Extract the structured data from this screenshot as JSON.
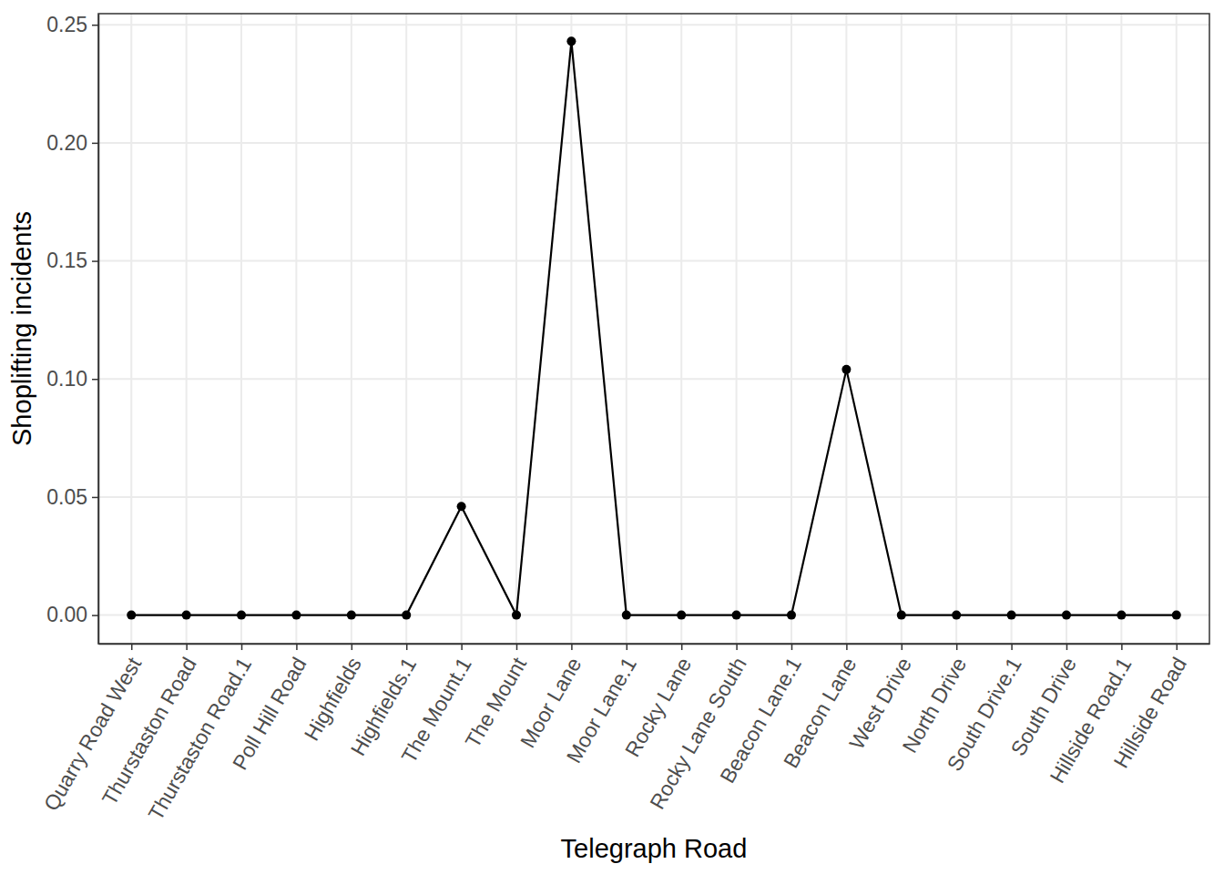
{
  "chart_data": {
    "type": "line",
    "x_label": "Telegraph Road",
    "y_label": "Shoplifting incidents",
    "categories": [
      "Quarry Road West",
      "Thurstaston Road",
      "Thurstaston Road.1",
      "Poll Hill Road",
      "Highfields",
      "Highfields.1",
      "The Mount.1",
      "The Mount",
      "Moor Lane",
      "Moor Lane.1",
      "Rocky Lane",
      "Rocky Lane South",
      "Beacon Lane.1",
      "Beacon Lane",
      "West Drive",
      "North Drive",
      "South Drive.1",
      "South Drive",
      "Hillside Road.1",
      "Hillside Road"
    ],
    "values": [
      0,
      0,
      0,
      0,
      0,
      0,
      0.046,
      0,
      0.243,
      0,
      0,
      0,
      0,
      0.104,
      0,
      0,
      0,
      0,
      0,
      0
    ],
    "color": "#000000",
    "marker": "circle",
    "line_style": "solid",
    "ylim": [
      -0.0121,
      0.2547
    ],
    "yticks": [
      {
        "value": 0,
        "label": "0.00"
      },
      {
        "value": 0.05,
        "label": "0.05"
      },
      {
        "value": 0.1,
        "label": "0.10"
      },
      {
        "value": 0.15,
        "label": "0.15"
      },
      {
        "value": 0.2,
        "label": "0.20"
      },
      {
        "value": 0.25,
        "label": "0.25"
      }
    ],
    "grid": true
  }
}
